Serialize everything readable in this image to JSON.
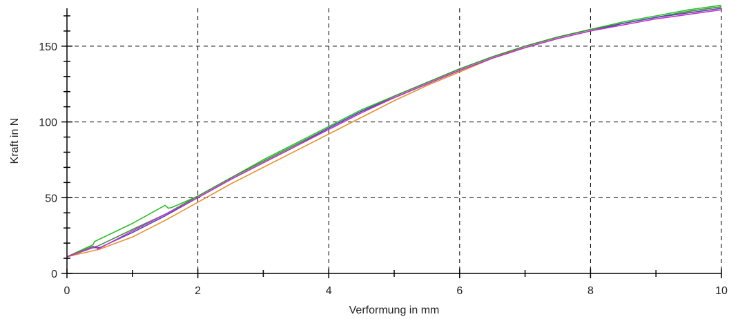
{
  "chart_data": {
    "type": "line",
    "xlabel": "Verformung in mm",
    "ylabel": "Kraft in N",
    "xlim": [
      0,
      10
    ],
    "ylim": [
      0,
      175
    ],
    "x_ticks": [
      0,
      2,
      4,
      6,
      8,
      10
    ],
    "y_ticks": [
      0,
      50,
      100,
      150
    ],
    "x_minor_step": 1,
    "y_minor_step": 10,
    "grid": true,
    "series": [
      {
        "color": "#e8912c",
        "points": [
          [
            0,
            11
          ],
          [
            0.5,
            16
          ],
          [
            1,
            24
          ],
          [
            1.5,
            35
          ],
          [
            2,
            47
          ],
          [
            2.5,
            59
          ],
          [
            3,
            70
          ],
          [
            3.5,
            81
          ],
          [
            4,
            92
          ],
          [
            4.5,
            103
          ],
          [
            5,
            114
          ],
          [
            5.5,
            124
          ],
          [
            6,
            133
          ],
          [
            6.5,
            142
          ],
          [
            7,
            150
          ],
          [
            7.5,
            156
          ],
          [
            8,
            161
          ],
          [
            8.5,
            165
          ],
          [
            9,
            169
          ],
          [
            9.5,
            173
          ],
          [
            10,
            176
          ]
        ]
      },
      {
        "color": "#2ac02a",
        "points": [
          [
            0,
            11
          ],
          [
            0.4,
            19
          ],
          [
            0.42,
            21
          ],
          [
            1,
            33
          ],
          [
            1.5,
            45
          ],
          [
            1.55,
            43
          ],
          [
            1.6,
            43.5
          ],
          [
            2,
            51
          ],
          [
            2.5,
            63
          ],
          [
            3,
            75
          ],
          [
            3.5,
            86
          ],
          [
            4,
            97
          ],
          [
            4.5,
            108
          ],
          [
            5,
            117
          ],
          [
            5.5,
            126
          ],
          [
            6,
            135
          ],
          [
            6.5,
            143
          ],
          [
            7,
            150
          ],
          [
            7.5,
            156
          ],
          [
            8,
            161
          ],
          [
            8.5,
            166
          ],
          [
            9,
            170
          ],
          [
            9.5,
            174
          ],
          [
            10,
            177
          ]
        ]
      },
      {
        "color": "#3f8f3f",
        "points": [
          [
            0,
            11
          ],
          [
            0.4,
            18
          ],
          [
            0.42,
            17
          ],
          [
            1,
            29
          ],
          [
            1.5,
            39
          ],
          [
            2,
            51
          ],
          [
            2.5,
            63
          ],
          [
            3,
            74
          ],
          [
            3.5,
            85
          ],
          [
            4,
            96
          ],
          [
            4.5,
            107
          ],
          [
            5,
            117
          ],
          [
            5.5,
            126
          ],
          [
            6,
            135
          ],
          [
            6.5,
            143
          ],
          [
            7,
            150
          ],
          [
            7.5,
            156
          ],
          [
            8,
            161
          ],
          [
            8.5,
            165
          ],
          [
            9,
            169
          ],
          [
            9.5,
            173
          ],
          [
            10,
            176
          ]
        ]
      },
      {
        "color": "#4a4ab8",
        "points": [
          [
            0,
            11
          ],
          [
            0.4,
            17
          ],
          [
            0.5,
            17
          ],
          [
            1,
            27
          ],
          [
            1.5,
            38
          ],
          [
            2,
            50
          ],
          [
            2.5,
            62
          ],
          [
            3,
            73
          ],
          [
            3.5,
            84
          ],
          [
            4,
            96
          ],
          [
            4.5,
            107
          ],
          [
            5,
            116
          ],
          [
            5.5,
            125
          ],
          [
            6,
            134
          ],
          [
            6.5,
            142
          ],
          [
            7,
            149
          ],
          [
            7.5,
            155
          ],
          [
            8,
            160
          ],
          [
            8.5,
            165
          ],
          [
            9,
            169
          ],
          [
            9.5,
            172
          ],
          [
            10,
            175
          ]
        ]
      },
      {
        "color": "#cc2fcc",
        "points": [
          [
            0,
            11
          ],
          [
            0.45,
            18
          ],
          [
            0.47,
            16
          ],
          [
            1,
            28
          ],
          [
            1.5,
            39
          ],
          [
            2,
            50
          ],
          [
            2.5,
            62
          ],
          [
            3,
            73
          ],
          [
            3.5,
            84
          ],
          [
            4,
            95
          ],
          [
            4.5,
            106
          ],
          [
            5,
            116
          ],
          [
            5.5,
            125
          ],
          [
            6,
            134
          ],
          [
            6.5,
            142
          ],
          [
            7,
            149
          ],
          [
            7.5,
            155
          ],
          [
            8,
            160
          ],
          [
            8.5,
            164
          ],
          [
            9,
            168
          ],
          [
            9.5,
            171
          ],
          [
            10,
            174
          ]
        ]
      }
    ]
  }
}
